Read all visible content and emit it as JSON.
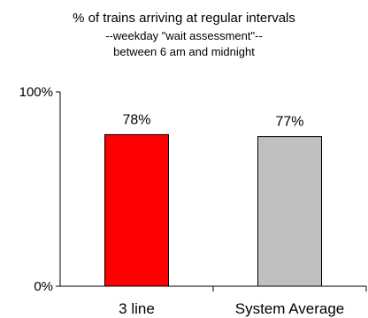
{
  "chart_data": {
    "type": "bar",
    "title": "% of trains arriving at regular intervals",
    "subtitle_lines": [
      "--weekday \"wait assessment\"--",
      "between 6 am and midnight"
    ],
    "categories": [
      "3 line",
      "System Average"
    ],
    "values": [
      78,
      77
    ],
    "value_labels": [
      "78%",
      "77%"
    ],
    "bar_colors": [
      "#ff0000",
      "#c0c0c0"
    ],
    "ylim": [
      0,
      100
    ],
    "yticks": [
      0,
      100
    ],
    "ytick_labels": [
      "0%",
      "100%"
    ],
    "xlabel": "",
    "ylabel": "",
    "grid": false,
    "legend": "none"
  }
}
